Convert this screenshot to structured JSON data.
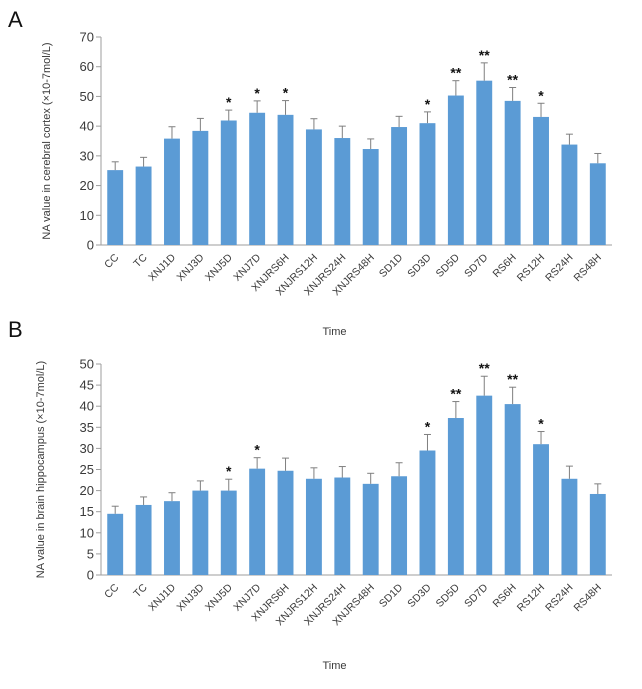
{
  "figure": {
    "bar_color": "#5b9bd5",
    "error_color": "#7f7f7f"
  },
  "chart_data": [
    {
      "type": "bar",
      "panel_label": "A",
      "categories": [
        "CC",
        "TC",
        "XNJ1D",
        "XNJ3D",
        "XNJ5D",
        "XNJ7D",
        "XNJRS6H",
        "XNJRS12H",
        "XNJRS24H",
        "XNJRS48H",
        "SD1D",
        "SD3D",
        "SD5D",
        "SD7D",
        "RS6H",
        "RS12H",
        "RS24H",
        "RS48H"
      ],
      "values": [
        25.2,
        26.4,
        35.8,
        38.4,
        41.9,
        44.5,
        43.8,
        38.9,
        36.0,
        32.3,
        39.7,
        41.0,
        50.3,
        55.3,
        48.5,
        43.1,
        33.8,
        27.5
      ],
      "errors": [
        2.8,
        3.1,
        4.0,
        4.2,
        3.5,
        4.0,
        4.8,
        3.6,
        4.0,
        3.4,
        3.6,
        3.8,
        5.0,
        6.0,
        4.5,
        4.6,
        3.5,
        3.3
      ],
      "significance": [
        "",
        "",
        "",
        "",
        "*",
        "*",
        "*",
        "",
        "",
        "",
        "",
        "*",
        "**",
        "**",
        "**",
        "*",
        "",
        ""
      ],
      "xlabel": "Time",
      "ylabel": "NA value in cerebral cortex (×10-7mol/L)",
      "ylim": [
        0,
        70
      ],
      "yticks": [
        0,
        10,
        20,
        30,
        40,
        50,
        60,
        70
      ],
      "grid": false
    },
    {
      "type": "bar",
      "panel_label": "B",
      "categories": [
        "CC",
        "TC",
        "XNJ1D",
        "XNJ3D",
        "XNJ5D",
        "XNJ7D",
        "XNJRS6H",
        "XNJRS12H",
        "XNJRS24H",
        "XNJRS48H",
        "SD1D",
        "SD3D",
        "SD5D",
        "SD7D",
        "RS6H",
        "RS12H",
        "RS24H",
        "RS48H"
      ],
      "values": [
        14.5,
        16.6,
        17.5,
        20.0,
        20.0,
        25.2,
        24.7,
        22.8,
        23.1,
        21.6,
        23.4,
        29.5,
        37.2,
        42.5,
        40.5,
        31.0,
        22.8,
        19.2
      ],
      "errors": [
        1.8,
        1.9,
        2.0,
        2.3,
        2.7,
        2.6,
        3.0,
        2.6,
        2.6,
        2.5,
        3.2,
        3.8,
        3.9,
        4.6,
        4.0,
        3.0,
        3.0,
        2.4
      ],
      "significance": [
        "",
        "",
        "",
        "",
        "*",
        "*",
        "",
        "",
        "",
        "",
        "",
        "*",
        "**",
        "**",
        "**",
        "*",
        "",
        ""
      ],
      "xlabel": "Time",
      "ylabel": "NA value in brain hippocampus (×10-7mol/L)",
      "ylim": [
        0,
        50
      ],
      "yticks": [
        0,
        5,
        10,
        15,
        20,
        25,
        30,
        35,
        40,
        45,
        50
      ],
      "grid": false
    }
  ]
}
